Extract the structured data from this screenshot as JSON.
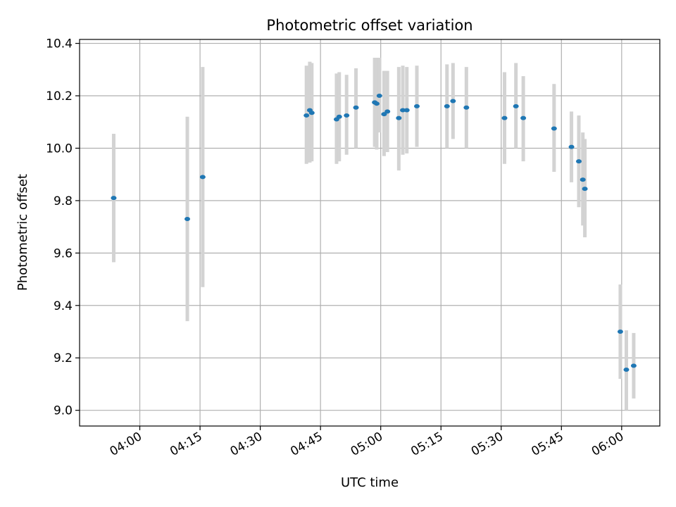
{
  "chart_data": {
    "type": "scatter",
    "title": "Photometric offset variation",
    "xlabel": "UTC time",
    "ylabel": "Photometric offset",
    "x_tick_labels": [
      "04:00",
      "04:15",
      "04:30",
      "04:45",
      "05:00",
      "05:15",
      "05:30",
      "05:45",
      "06:00"
    ],
    "y_tick_labels": [
      "9.0",
      "9.2",
      "9.4",
      "9.6",
      "9.8",
      "10.0",
      "10.2",
      "10.4"
    ],
    "y_ticks": [
      9.0,
      9.2,
      9.4,
      9.6,
      9.8,
      10.0,
      10.2,
      10.4
    ],
    "xlim": [
      "03:45:00",
      "06:09:30"
    ],
    "ylim": [
      8.94,
      10.415
    ],
    "grid": true,
    "colors": {
      "points": "#1f77b4",
      "error_bars": "#d3d3d3",
      "grid": "#b0b0b0"
    },
    "series": [
      {
        "x": [
          "03:53:30",
          "04:11:50",
          "04:15:40",
          "04:41:30",
          "04:42:20",
          "04:42:50",
          "04:49:00",
          "04:49:40",
          "04:51:30",
          "04:53:50",
          "04:58:30",
          "04:59:00",
          "04:59:40",
          "05:00:50",
          "05:01:40",
          "05:04:30",
          "05:05:30",
          "05:06:30",
          "05:09:00",
          "05:16:30",
          "05:18:00",
          "05:21:20",
          "05:30:50",
          "05:33:40",
          "05:35:30",
          "05:43:10",
          "05:47:30",
          "05:49:20",
          "05:50:20",
          "05:50:50",
          "05:59:40",
          "06:01:10",
          "06:03:00"
        ],
        "y": [
          9.81,
          9.73,
          9.89,
          10.125,
          10.145,
          10.135,
          10.11,
          10.12,
          10.125,
          10.155,
          10.175,
          10.17,
          10.2,
          10.13,
          10.14,
          10.115,
          10.145,
          10.145,
          10.16,
          10.16,
          10.18,
          10.155,
          10.115,
          10.16,
          10.115,
          10.075,
          10.005,
          9.95,
          9.88,
          9.845,
          9.3,
          9.155,
          9.17
        ],
        "y_low": [
          9.565,
          9.34,
          9.47,
          9.94,
          9.945,
          9.95,
          9.94,
          9.95,
          9.975,
          10.0,
          10.005,
          9.995,
          10.06,
          9.97,
          9.985,
          9.915,
          9.975,
          9.98,
          10.005,
          10.0,
          10.035,
          10.0,
          9.94,
          10.0,
          9.95,
          9.91,
          9.87,
          9.775,
          9.705,
          9.66,
          9.12,
          9.0,
          9.045
        ],
        "y_high": [
          10.055,
          10.12,
          10.31,
          10.315,
          10.33,
          10.325,
          10.285,
          10.29,
          10.28,
          10.305,
          10.345,
          10.345,
          10.345,
          10.295,
          10.295,
          10.31,
          10.315,
          10.31,
          10.315,
          10.32,
          10.325,
          10.31,
          10.29,
          10.325,
          10.275,
          10.245,
          10.14,
          10.125,
          10.06,
          10.035,
          9.48,
          9.305,
          9.295
        ]
      }
    ]
  }
}
